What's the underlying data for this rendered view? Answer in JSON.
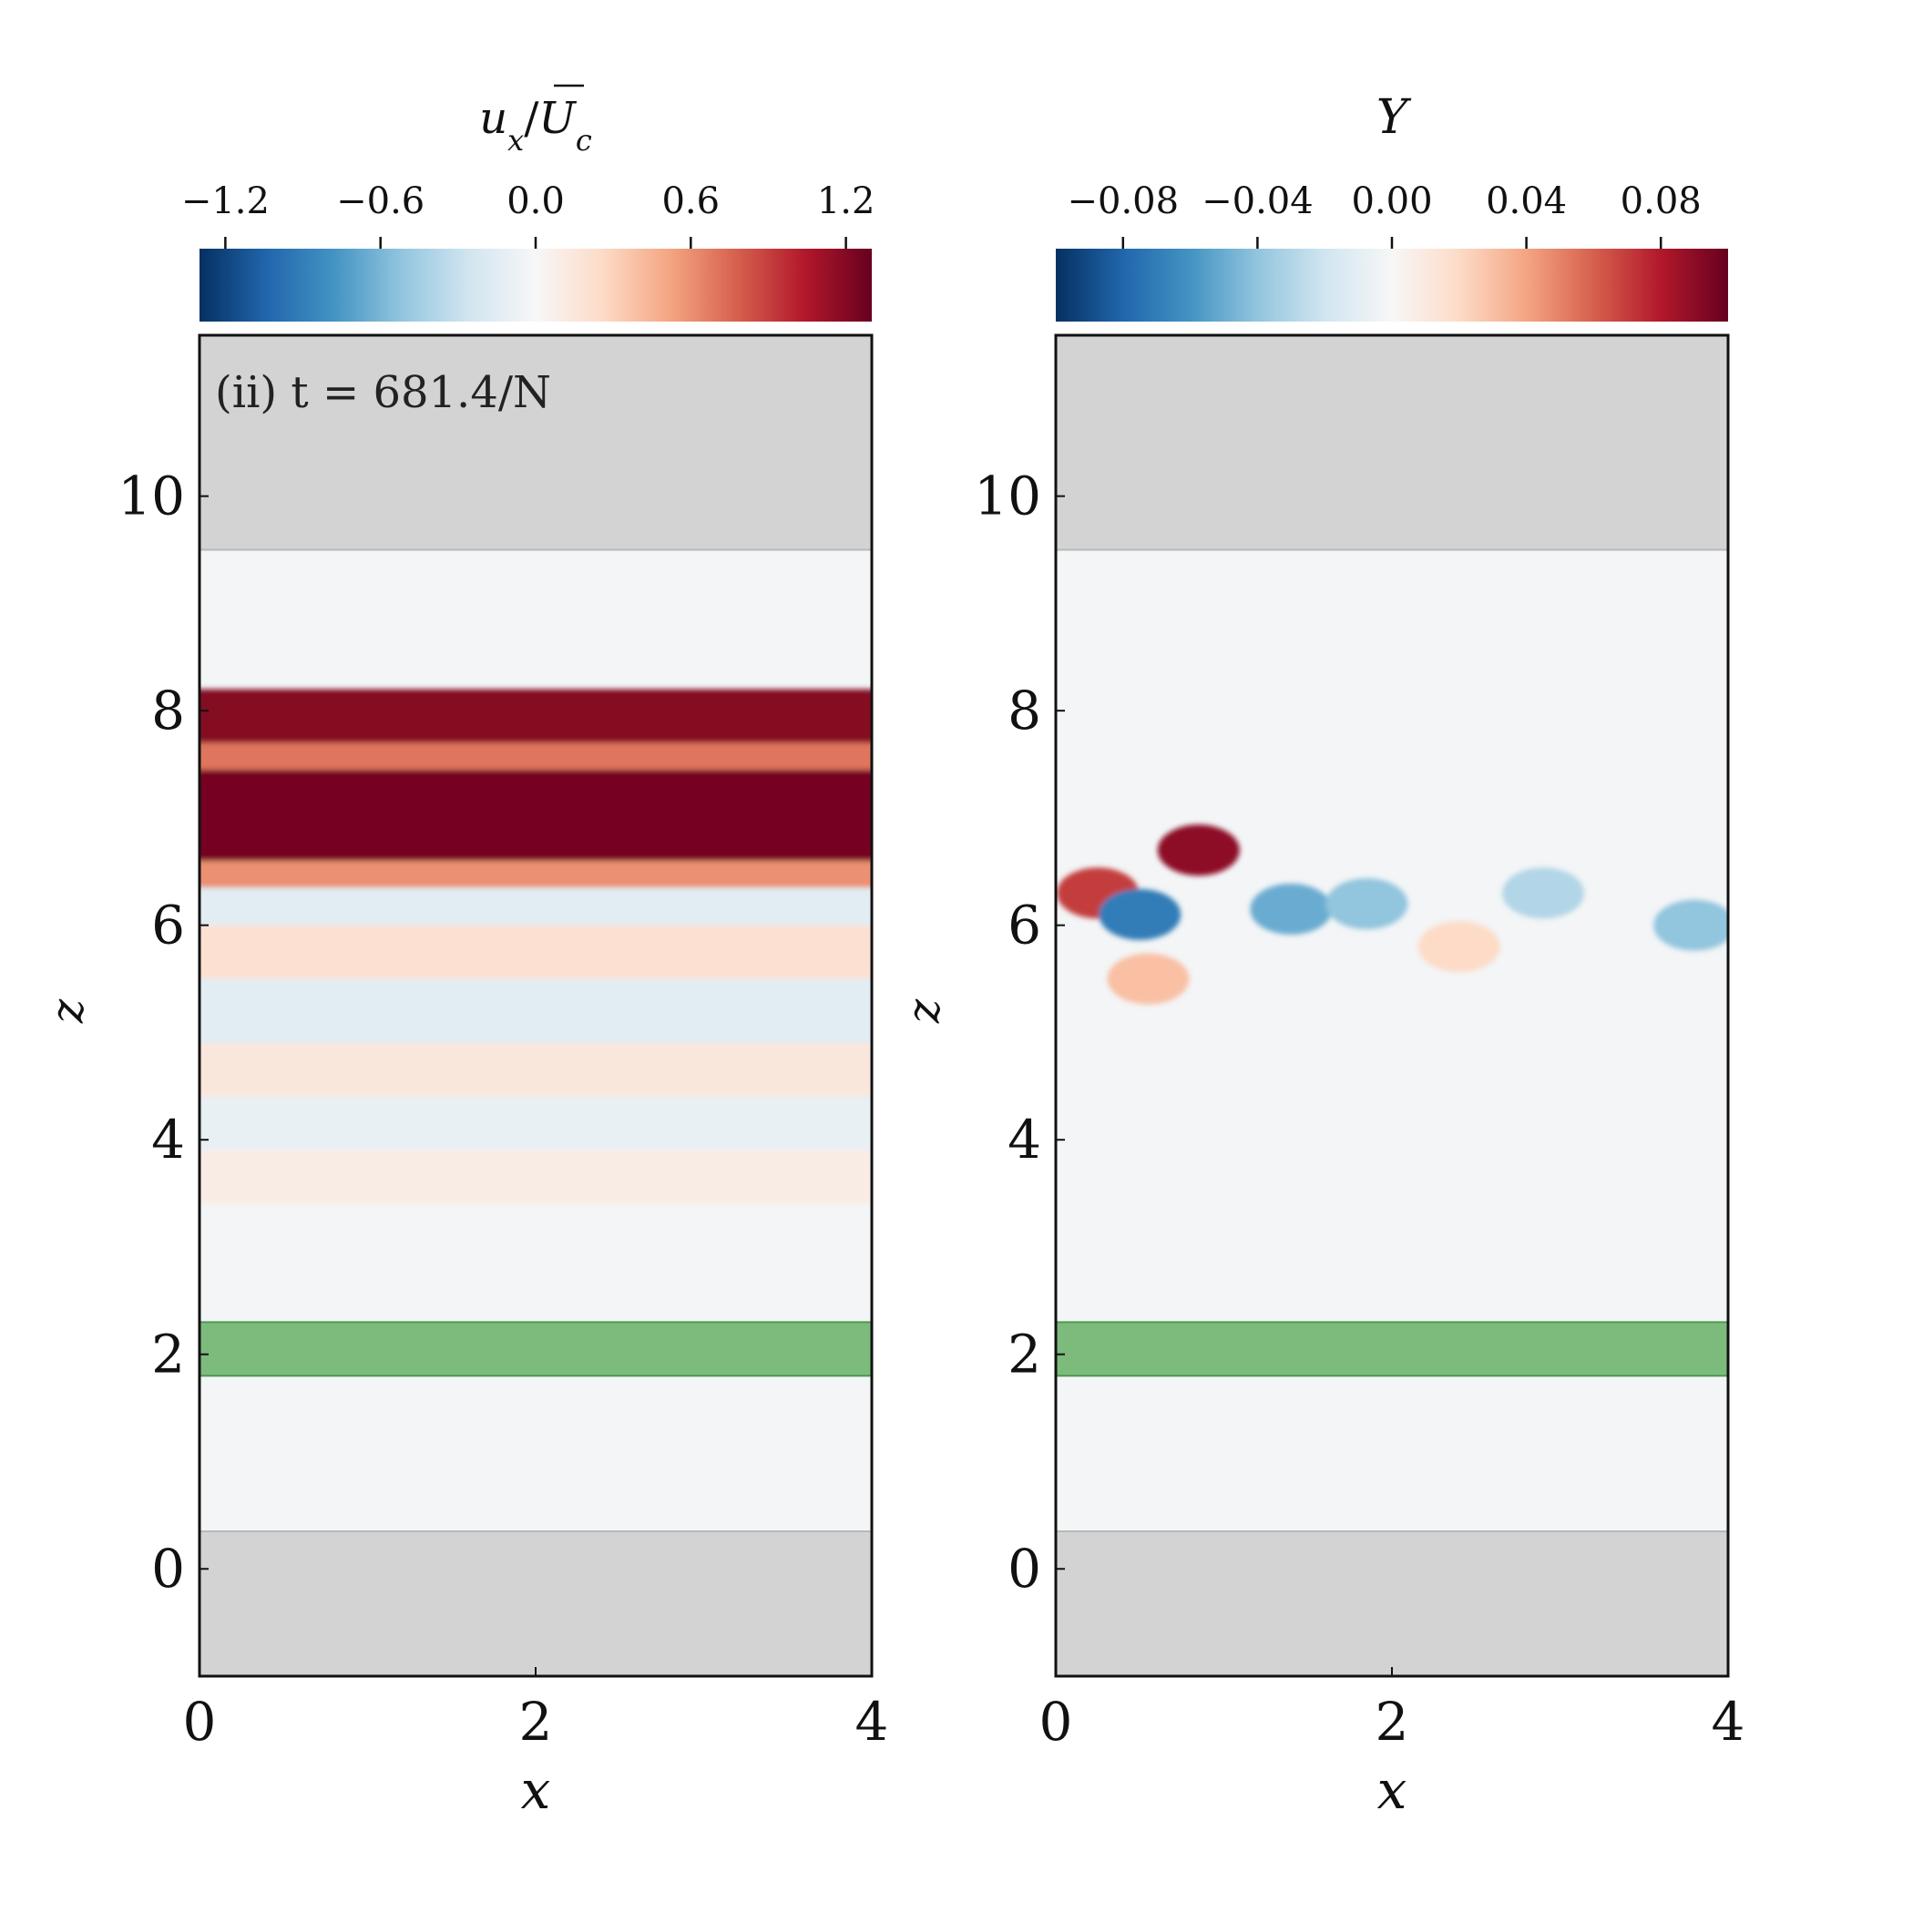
{
  "chart_data": [
    {
      "type": "heatmap",
      "field": "horizontal velocity",
      "colorbar": {
        "title": "u_x/Ū_c",
        "title_main": "u",
        "title_sub": "x",
        "title_over": "U",
        "title_sub2": "c",
        "range": [
          -1.3,
          1.3
        ],
        "ticks": [
          -1.2,
          -0.6,
          0.0,
          0.6,
          1.2
        ],
        "tick_labels": [
          "−1.2",
          "−0.6",
          "0.0",
          "0.6",
          "1.2"
        ],
        "colormap": "RdBu_r"
      },
      "annotation": "(ii) t = 681.4/N",
      "xlabel": "x",
      "ylabel": "z",
      "xlim": [
        0,
        4
      ],
      "ylim": [
        -1,
        11.5
      ],
      "xticks": [
        0,
        2,
        4
      ],
      "xtick_labels": [
        "0",
        "2",
        "4"
      ],
      "yticks": [
        0,
        2,
        4,
        6,
        8,
        10
      ],
      "ytick_labels": [
        "0",
        "2",
        "4",
        "6",
        "8",
        "10"
      ],
      "regions": [
        {
          "kind": "masked",
          "z_range": [
            -1,
            0.35
          ],
          "color": "#d3d3d3"
        },
        {
          "kind": "masked",
          "z_range": [
            9.5,
            11.5
          ],
          "color": "#d3d3d3"
        },
        {
          "kind": "forcing-band",
          "z_range": [
            1.8,
            2.3
          ],
          "color": "#7dbb7d"
        }
      ],
      "bands": [
        {
          "z": [
            8.2,
            7.7
          ],
          "value": 1.2
        },
        {
          "z": [
            7.7,
            7.45
          ],
          "value": 0.7
        },
        {
          "z": [
            7.45,
            6.6
          ],
          "value": 1.25
        },
        {
          "z": [
            6.6,
            6.35
          ],
          "value": 0.6
        },
        {
          "z": [
            6.35,
            6.0
          ],
          "value": -0.15
        },
        {
          "z": [
            6.0,
            5.5
          ],
          "value": 0.2
        },
        {
          "z": [
            5.5,
            4.9
          ],
          "value": -0.15
        },
        {
          "z": [
            4.9,
            4.4
          ],
          "value": 0.15
        },
        {
          "z": [
            4.4,
            3.9
          ],
          "value": -0.1
        },
        {
          "z": [
            3.9,
            3.4
          ],
          "value": 0.1
        }
      ]
    },
    {
      "type": "heatmap",
      "field": "Upsilon",
      "colorbar": {
        "title": "Υ",
        "range": [
          -0.1,
          0.1
        ],
        "ticks": [
          -0.08,
          -0.04,
          0.0,
          0.04,
          0.08
        ],
        "tick_labels": [
          "−0.08",
          "−0.04",
          "0.00",
          "0.04",
          "0.08"
        ],
        "colormap": "RdBu_r"
      },
      "xlabel": "x",
      "ylabel": "z",
      "xlim": [
        0,
        4
      ],
      "ylim": [
        -1,
        11.5
      ],
      "xticks": [
        0,
        2,
        4
      ],
      "xtick_labels": [
        "0",
        "2",
        "4"
      ],
      "yticks": [
        0,
        2,
        4,
        6,
        8,
        10
      ],
      "ytick_labels": [
        "0",
        "2",
        "4",
        "6",
        "8",
        "10"
      ],
      "regions": [
        {
          "kind": "masked",
          "z_range": [
            -1,
            0.35
          ],
          "color": "#d3d3d3"
        },
        {
          "kind": "masked",
          "z_range": [
            9.5,
            11.5
          ],
          "color": "#d3d3d3"
        },
        {
          "kind": "forcing-band",
          "z_range": [
            1.8,
            2.3
          ],
          "color": "#7dbb7d"
        }
      ],
      "features": [
        {
          "x": 0.25,
          "z": 6.3,
          "value": 0.07
        },
        {
          "x": 0.5,
          "z": 6.1,
          "value": -0.07
        },
        {
          "x": 0.85,
          "z": 6.7,
          "value": 0.09
        },
        {
          "x": 1.4,
          "z": 6.15,
          "value": -0.05
        },
        {
          "x": 1.85,
          "z": 6.2,
          "value": -0.04
        },
        {
          "x": 2.9,
          "z": 6.3,
          "value": -0.03
        },
        {
          "x": 3.8,
          "z": 6.0,
          "value": -0.04
        },
        {
          "x": 2.4,
          "z": 5.8,
          "value": 0.02
        },
        {
          "x": 0.55,
          "z": 5.5,
          "value": 0.03
        }
      ]
    }
  ]
}
